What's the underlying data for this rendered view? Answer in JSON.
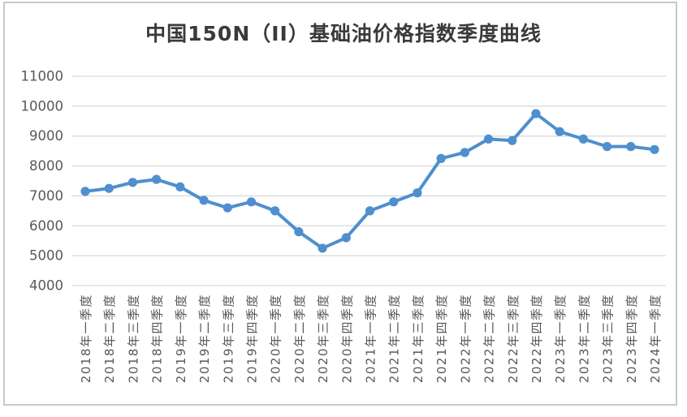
{
  "window": {
    "background": "#ffffff",
    "panel_border_color": "#c8c8c8"
  },
  "chart_data": {
    "type": "line",
    "title": "中国150N（II）基础油价格指数季度曲线",
    "categories": [
      "2018年一季度",
      "2018年二季度",
      "2018年三季度",
      "2018年四季度",
      "2019年一季度",
      "2019年二季度",
      "2019年三季度",
      "2019年四季度",
      "2020年一季度",
      "2020年二季度",
      "2020年三季度",
      "2020年四季度",
      "2021年一季度",
      "2021年二季度",
      "2021年三季度",
      "2021年四季度",
      "2022年一季度",
      "2022年二季度",
      "2022年三季度",
      "2022年四季度",
      "2023年一季度",
      "2023年二季度",
      "2023年三季度",
      "2023年四季度",
      "2024年一季度"
    ],
    "values": [
      7150,
      7250,
      7450,
      7550,
      7300,
      6850,
      6600,
      6800,
      6500,
      5800,
      5250,
      5600,
      6500,
      6800,
      7100,
      8250,
      8450,
      8900,
      8850,
      9750,
      9150,
      8900,
      8650,
      8650,
      8550
    ],
    "xlabel": "",
    "ylabel": "",
    "ylim": [
      4000,
      11000
    ],
    "yticks": [
      4000,
      5000,
      6000,
      7000,
      8000,
      9000,
      10000,
      11000
    ],
    "grid": true,
    "legend": "none",
    "marker": "circle",
    "colors": {
      "line": "#4f8fce",
      "gridline": "#d9d9d9",
      "tick_label": "#595959",
      "title": "#3a3a3a"
    }
  }
}
